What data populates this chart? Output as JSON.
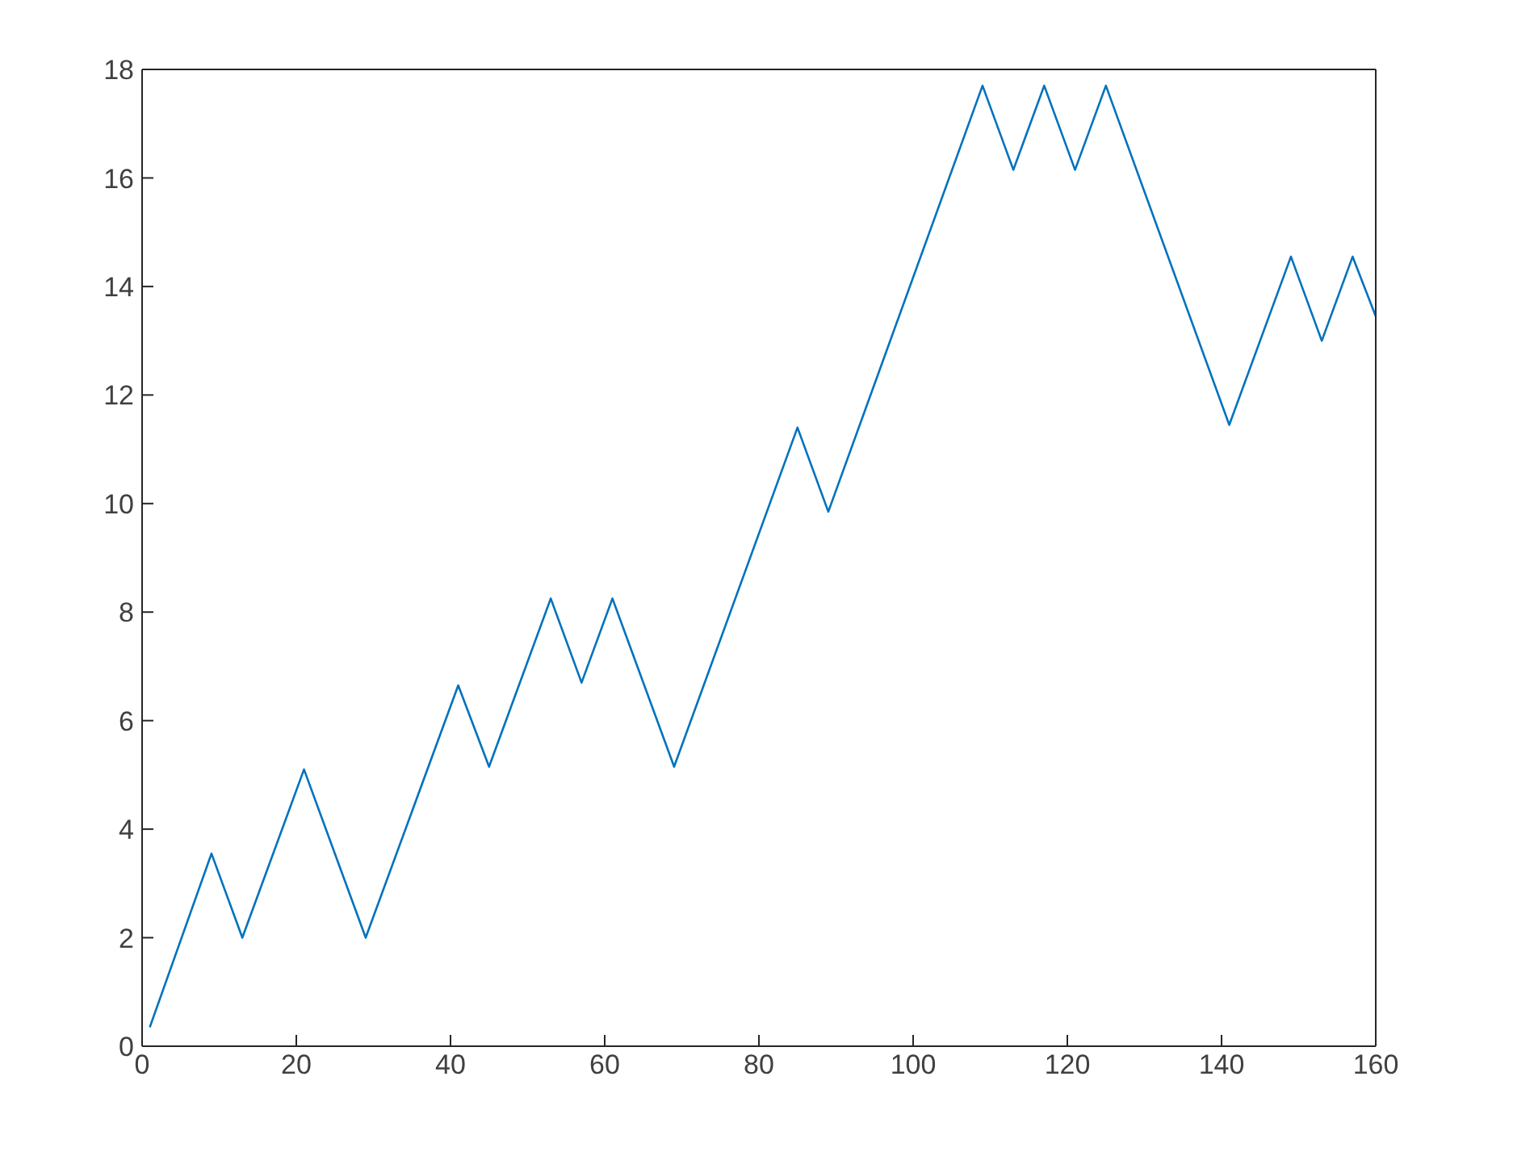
{
  "chart_data": {
    "type": "line",
    "x": [
      1,
      9,
      13,
      21,
      29,
      41,
      45,
      53,
      57,
      61,
      69,
      85,
      89,
      109,
      113,
      117,
      121,
      125,
      141,
      149,
      153,
      157,
      160
    ],
    "series": [
      {
        "color": "#0072bd",
        "values": [
          0.35,
          3.55,
          2.0,
          5.1,
          2.0,
          6.65,
          5.15,
          8.25,
          6.7,
          8.25,
          5.15,
          11.4,
          9.85,
          17.7,
          16.15,
          17.7,
          16.15,
          17.7,
          11.45,
          14.55,
          13.0,
          14.55,
          13.45
        ]
      }
    ],
    "xlim": [
      0,
      160
    ],
    "ylim": [
      0,
      18
    ],
    "xticks": [
      0,
      20,
      40,
      60,
      80,
      100,
      120,
      140,
      160
    ],
    "yticks": [
      0,
      2,
      4,
      6,
      8,
      10,
      12,
      14,
      16,
      18
    ]
  }
}
